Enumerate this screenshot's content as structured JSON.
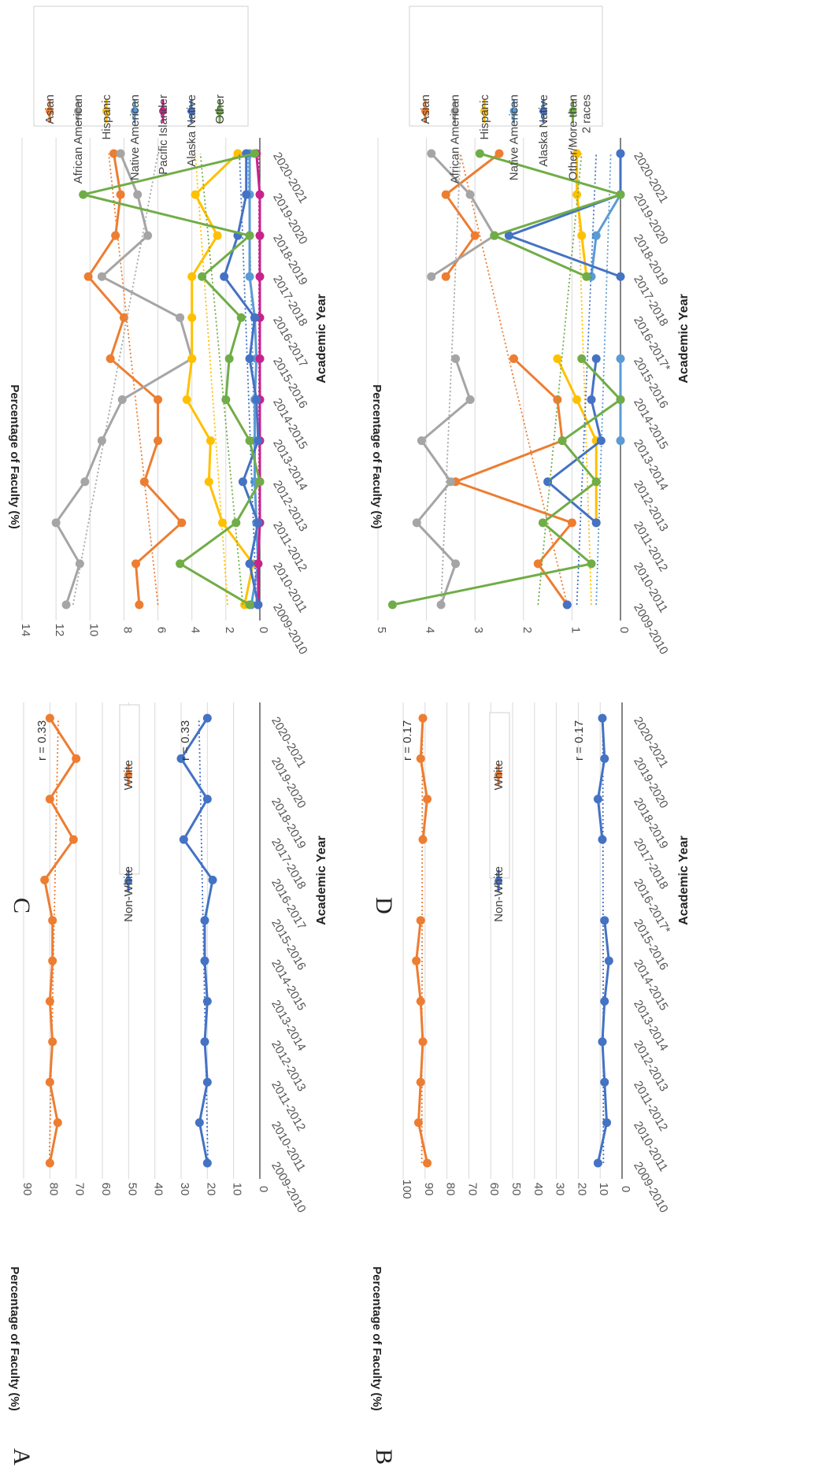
{
  "colors": {
    "asian": "#ED7D31",
    "african_american": "#A5A5A5",
    "hispanic": "#FFC000",
    "native_american": "#5B9BD5",
    "pacific_islander": "#C8238C",
    "alaska_native": "#4472C4",
    "other": "#70AD47",
    "white": "#ED7D31",
    "non_white": "#4472C4",
    "grid": "#D9D9D9"
  },
  "chart_data": [
    {
      "panel": "A",
      "type": "line",
      "ylabel": "Percentage of Faculty (%)",
      "xlabel": "Academic Year",
      "ylim": [
        0,
        90
      ],
      "yticks": [
        0,
        10,
        20,
        30,
        40,
        50,
        60,
        70,
        80,
        90
      ],
      "categories": [
        "2009-2010",
        "2010-2011",
        "2011-2012",
        "2012-2013",
        "2013-2014",
        "2014-2015",
        "2015-2016",
        "2016-2017",
        "2017-2018",
        "2018-2019",
        "2019-2020",
        "2020-2021"
      ],
      "series": [
        {
          "name": "Non-White",
          "color_key": "non_white",
          "values": [
            20,
            23,
            20,
            21,
            20,
            21,
            21,
            18,
            29,
            20,
            30,
            20
          ],
          "trend": [
            19.8,
            23.2
          ]
        },
        {
          "name": "White",
          "color_key": "white",
          "values": [
            80,
            77,
            80,
            79,
            80,
            79,
            79,
            82,
            71,
            80,
            70,
            80
          ],
          "trend": [
            80.2,
            76.8
          ]
        }
      ],
      "annotations": [
        {
          "text": "r = 0.33",
          "series": "White"
        },
        {
          "text": "r = 0.33",
          "series": "Non-White"
        }
      ],
      "legend": "inside-middle"
    },
    {
      "panel": "B",
      "type": "line",
      "ylabel": "Percentage of Faculty (%)",
      "xlabel": "Academic Year",
      "ylim": [
        0,
        100
      ],
      "yticks": [
        0,
        10,
        20,
        30,
        40,
        50,
        60,
        70,
        80,
        90,
        100
      ],
      "categories": [
        "2009-2010",
        "2010-2011",
        "2011-2012",
        "2012-2013",
        "2013-2014",
        "2014-2015",
        "2015-2016",
        "2016-2017*",
        "2017-2018",
        "2018-2019",
        "2019-2020",
        "2020-2021"
      ],
      "series": [
        {
          "name": "Non-White",
          "color_key": "non_white",
          "values": [
            11,
            7,
            8,
            9,
            8,
            6,
            8,
            null,
            9,
            11,
            8,
            9
          ],
          "trend": [
            8.5,
            8.8
          ]
        },
        {
          "name": "White",
          "color_key": "white",
          "values": [
            89,
            93,
            92,
            91,
            92,
            94,
            92,
            null,
            91,
            89,
            92,
            91
          ],
          "trend": [
            91.5,
            91.2
          ]
        }
      ],
      "annotations": [
        {
          "text": "r = 0.17",
          "series": "White"
        },
        {
          "text": "r = 0.17",
          "series": "Non-White"
        }
      ],
      "legend": "inside-middle"
    },
    {
      "panel": "C",
      "type": "line",
      "ylabel": "Percentage of Faculty (%)",
      "xlabel": "Academic Year",
      "ylim": [
        0,
        14
      ],
      "yticks": [
        0,
        2,
        4,
        6,
        8,
        10,
        12,
        14
      ],
      "categories": [
        "2009-2010",
        "2010-2011",
        "2011-2012",
        "2012-2013",
        "2013-2014",
        "2014-2015",
        "2015-2016",
        "2016-2017",
        "2017-2018",
        "2018-2019",
        "2019-2020",
        "2020-2021"
      ],
      "series": [
        {
          "name": "Asian",
          "color_key": "asian",
          "values": [
            7.1,
            7.3,
            4.6,
            6.8,
            6.0,
            6.0,
            8.8,
            8.0,
            10.1,
            8.5,
            8.2,
            8.6
          ],
          "trend": [
            6.0,
            8.9
          ]
        },
        {
          "name": "African American",
          "color_key": "african_american",
          "values": [
            11.4,
            10.6,
            12.0,
            10.3,
            9.3,
            8.1,
            4.0,
            4.7,
            9.3,
            6.6,
            7.2,
            8.2
          ],
          "trend": [
            11.0,
            6.0
          ]
        },
        {
          "name": "Hispanic",
          "color_key": "hispanic",
          "values": [
            0.9,
            0.4,
            2.2,
            3.0,
            2.9,
            4.3,
            4.0,
            4.0,
            4.0,
            2.5,
            3.8,
            1.3
          ],
          "trend": [
            1.9,
            3.8
          ]
        },
        {
          "name": "Native American",
          "color_key": "native_american",
          "values": [
            0.5,
            0.1,
            0.2,
            0.3,
            0.3,
            0.3,
            0.2,
            0.3,
            0.6,
            0.6,
            0.6,
            0.6
          ],
          "trend": [
            0.1,
            0.7
          ]
        },
        {
          "name": "Pacific Islander",
          "color_key": "pacific_islander",
          "values": [
            0.1,
            0.1,
            0.0,
            0.0,
            0.0,
            0.0,
            0.0,
            0.0,
            0.0,
            0.0,
            0.0,
            0.2
          ],
          "trend": [
            0.05,
            0.05
          ]
        },
        {
          "name": "Alaska Native",
          "color_key": "alaska_native",
          "values": [
            0.1,
            0.6,
            0.1,
            1.0,
            0.1,
            0.2,
            0.6,
            0.3,
            2.1,
            1.3,
            0.8,
            0.8
          ],
          "trend": [
            0.2,
            1.2
          ]
        },
        {
          "name": "Other",
          "color_key": "other",
          "values": [
            0.6,
            4.7,
            1.4,
            0.0,
            0.6,
            2.0,
            1.8,
            1.1,
            3.4,
            0.6,
            10.4,
            0.3
          ],
          "trend": [
            1.0,
            3.5
          ]
        }
      ],
      "legend": "right"
    },
    {
      "panel": "D",
      "type": "line",
      "ylabel": "Percentage of Faculty (%)",
      "xlabel": "Academic Year",
      "ylim": [
        0,
        5
      ],
      "yticks": [
        0,
        1,
        2,
        3,
        4,
        5
      ],
      "categories": [
        "2009-2010",
        "2010-2011",
        "2011-2012",
        "2012-2013",
        "2013-2014",
        "2014-2015",
        "2015-2016",
        "2016-2017*",
        "2017-2018",
        "2018-2019",
        "2019-2020",
        "2020-2021"
      ],
      "series": [
        {
          "name": "Asian",
          "color_key": "asian",
          "values": [
            1.1,
            1.7,
            1.0,
            3.4,
            1.2,
            1.3,
            2.2,
            null,
            3.6,
            3.0,
            3.6,
            2.5
          ],
          "trend": [
            1.1,
            3.3
          ]
        },
        {
          "name": "African American",
          "color_key": "african_american",
          "values": [
            3.7,
            3.4,
            4.2,
            3.5,
            4.1,
            3.1,
            3.4,
            null,
            3.9,
            2.6,
            3.1,
            3.9
          ],
          "trend": [
            3.7,
            3.3
          ]
        },
        {
          "name": "Hispanic",
          "color_key": "hispanic",
          "values": [
            null,
            null,
            0.5,
            0.5,
            0.5,
            0.9,
            1.3,
            null,
            0.7,
            0.8,
            0.9,
            0.9
          ],
          "trend": [
            0.6,
            0.9
          ]
        },
        {
          "name": "Native American",
          "color_key": "native_american",
          "values": [
            null,
            null,
            null,
            null,
            0.0,
            0.0,
            0.0,
            null,
            0.6,
            0.5,
            0.0,
            0.0
          ],
          "trend": [
            0.5,
            0.2
          ]
        },
        {
          "name": "Alaska Native",
          "color_key": "alaska_native",
          "values": [
            1.1,
            null,
            0.5,
            1.5,
            0.4,
            0.6,
            0.5,
            null,
            0.0,
            2.3,
            0.0,
            0.0
          ],
          "trend": [
            0.9,
            0.5
          ]
        },
        {
          "name": "Other/More than 2 races",
          "color_key": "other",
          "values": [
            4.7,
            0.6,
            1.6,
            0.5,
            1.2,
            0.0,
            0.8,
            null,
            0.7,
            2.6,
            0.0,
            2.9
          ],
          "trend": [
            1.7,
            0.8
          ]
        }
      ],
      "legend": "right"
    }
  ]
}
